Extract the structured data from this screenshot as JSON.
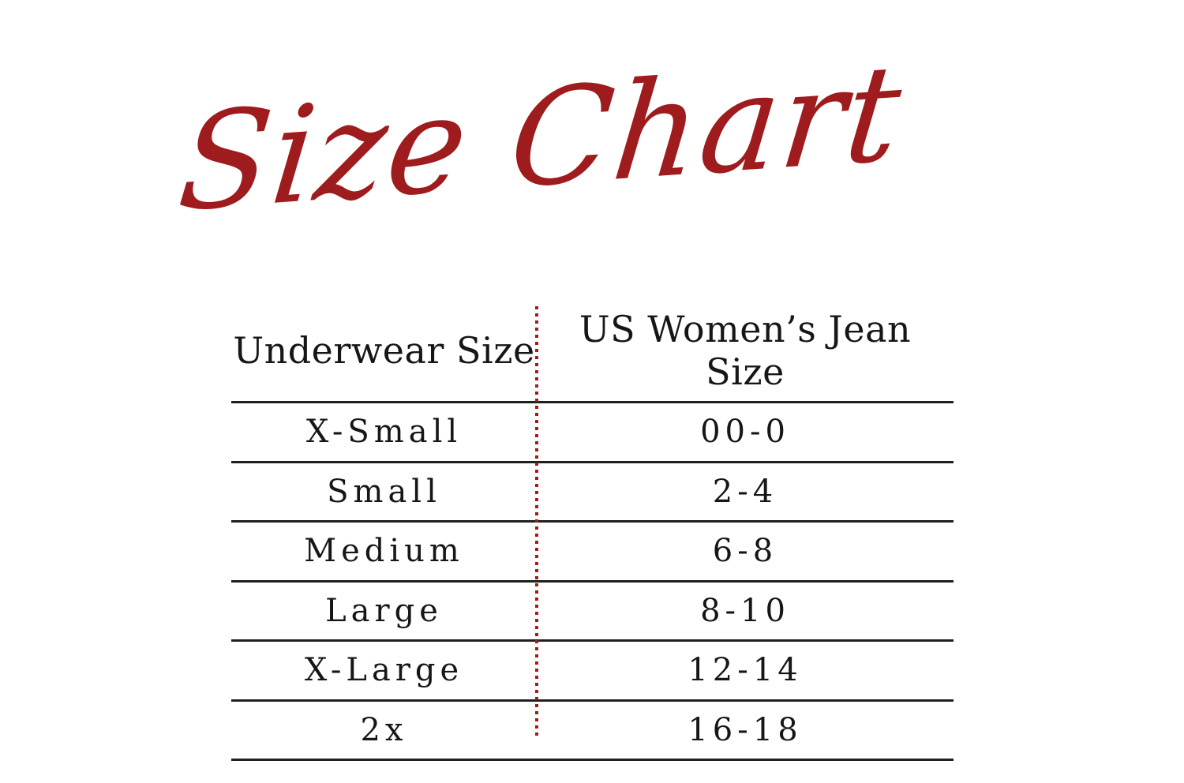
{
  "page": {
    "title": "Size Chart"
  },
  "colors": {
    "accent_red": "#9e1b1e",
    "rule_black": "#1f1f1f",
    "text_black": "#161616",
    "background": "#ffffff"
  },
  "table": {
    "columns": {
      "underwear": "Underwear Size",
      "jeans": "US Women’s Jean Size"
    },
    "rows": [
      {
        "underwear_size": "X-Small",
        "jean_size": "00-0"
      },
      {
        "underwear_size": "Small",
        "jean_size": "2-4"
      },
      {
        "underwear_size": "Medium",
        "jean_size": "6-8"
      },
      {
        "underwear_size": "Large",
        "jean_size": "8-10"
      },
      {
        "underwear_size": "X-Large",
        "jean_size": "12-14"
      },
      {
        "underwear_size": "2x",
        "jean_size": "16-18"
      }
    ]
  },
  "chart_data": {
    "type": "table",
    "title": "Size Chart",
    "columns": [
      "Underwear Size",
      "US Women’s Jean Size"
    ],
    "rows": [
      [
        "X-Small",
        "00-0"
      ],
      [
        "Small",
        "2-4"
      ],
      [
        "Medium",
        "6-8"
      ],
      [
        "Large",
        "8-10"
      ],
      [
        "X-Large",
        "12-14"
      ],
      [
        "2x",
        "16-18"
      ]
    ],
    "layout": {
      "column_divider": "red dotted vertical line",
      "row_separators": "black horizontal rules",
      "outer_borders": "none"
    }
  }
}
